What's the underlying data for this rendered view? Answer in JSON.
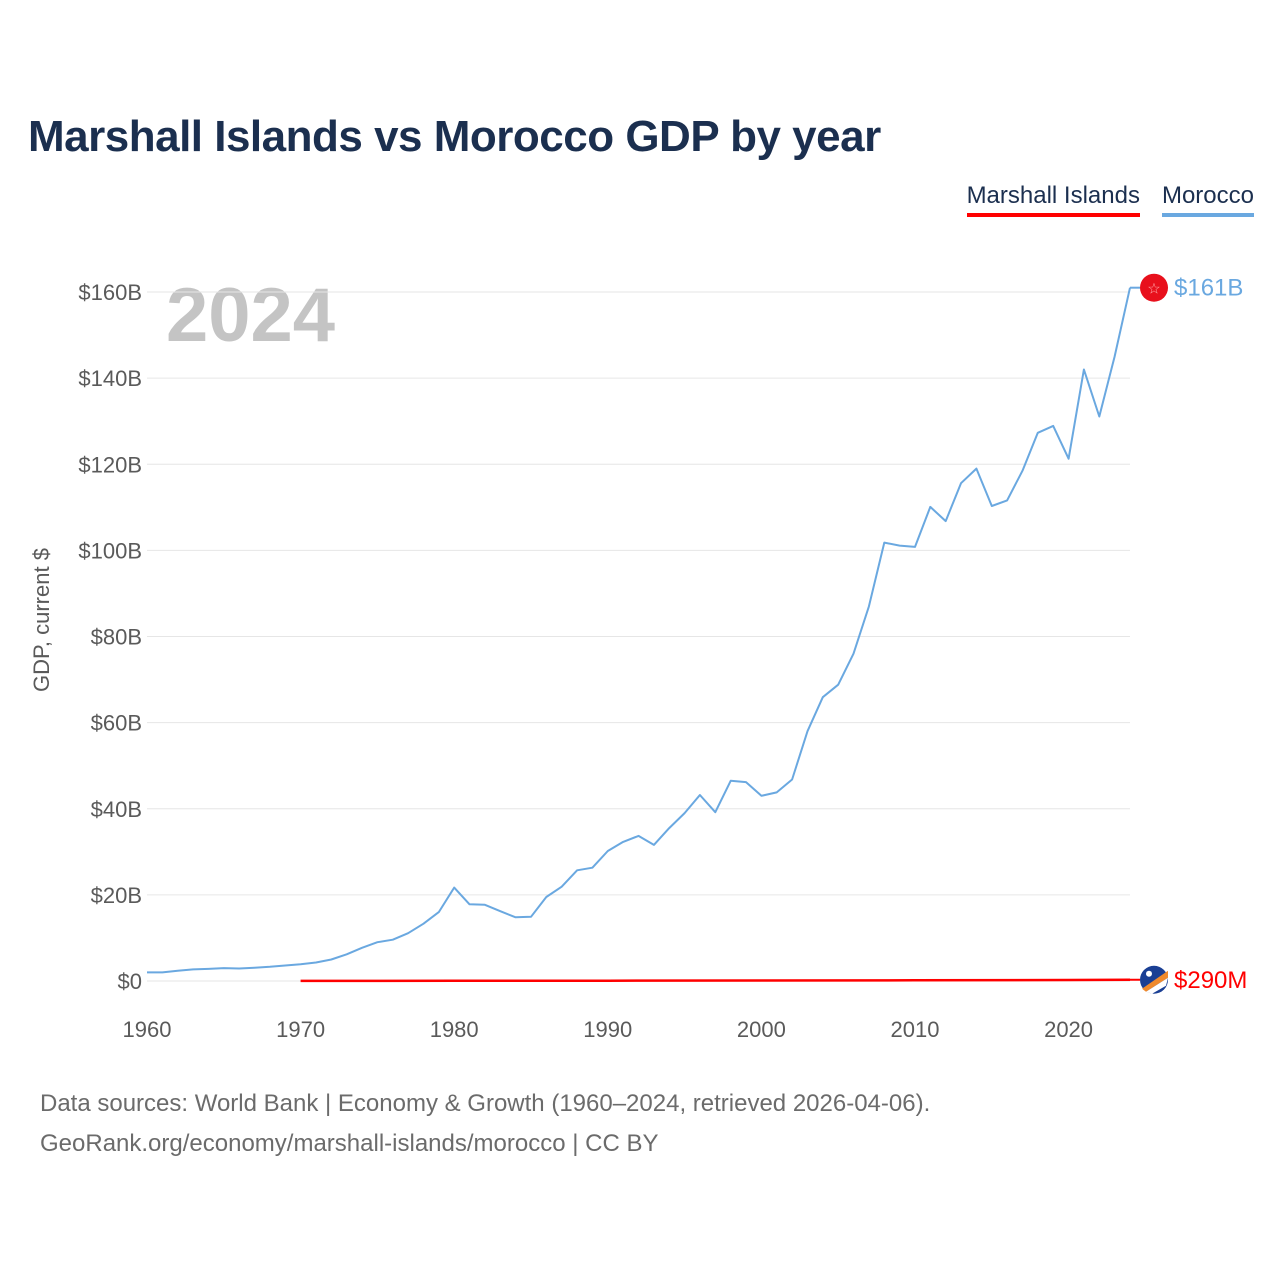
{
  "title": "Marshall Islands vs Morocco GDP by year",
  "legend": [
    {
      "label": "Marshall Islands",
      "color": "#ff0000"
    },
    {
      "label": "Morocco",
      "color": "#6aa8e0"
    }
  ],
  "year_label": "2024",
  "source": {
    "line1": "Data sources: World Bank | Economy & Growth (1960–2024, retrieved 2026-04-06).",
    "line2": "GeoRank.org/economy/marshall-islands/morocco | CC BY"
  },
  "chart_data": {
    "type": "line",
    "title": "Marshall Islands vs Morocco GDP by year",
    "xlabel": "",
    "ylabel": "GDP, current $",
    "xlim": [
      1960,
      2024
    ],
    "ylim": [
      0,
      160
    ],
    "y_unit": "billions USD",
    "x_ticks": [
      1960,
      1970,
      1980,
      1990,
      2000,
      2010,
      2020
    ],
    "y_ticks": [
      {
        "value": 0,
        "label": "$0"
      },
      {
        "value": 20,
        "label": "$20B"
      },
      {
        "value": 40,
        "label": "$40B"
      },
      {
        "value": 60,
        "label": "$60B"
      },
      {
        "value": 80,
        "label": "$80B"
      },
      {
        "value": 100,
        "label": "$100B"
      },
      {
        "value": 120,
        "label": "$120B"
      },
      {
        "value": 140,
        "label": "$140B"
      },
      {
        "value": 160,
        "label": "$160B"
      }
    ],
    "grid": true,
    "legend_position": "top-right",
    "series": [
      {
        "name": "Morocco",
        "color": "#6aa8e0",
        "end_label": "$161B",
        "flag": "morocco-flag",
        "x": [
          1960,
          1961,
          1962,
          1963,
          1964,
          1965,
          1966,
          1967,
          1968,
          1969,
          1970,
          1971,
          1972,
          1973,
          1974,
          1975,
          1976,
          1977,
          1978,
          1979,
          1980,
          1981,
          1982,
          1983,
          1984,
          1985,
          1986,
          1987,
          1988,
          1989,
          1990,
          1991,
          1992,
          1993,
          1994,
          1995,
          1996,
          1997,
          1998,
          1999,
          2000,
          2001,
          2002,
          2003,
          2004,
          2005,
          2006,
          2007,
          2008,
          2009,
          2010,
          2011,
          2012,
          2013,
          2014,
          2015,
          2016,
          2017,
          2018,
          2019,
          2020,
          2021,
          2022,
          2023,
          2024
        ],
        "values": [
          2.0,
          2.0,
          2.4,
          2.7,
          2.8,
          3.0,
          2.9,
          3.1,
          3.3,
          3.6,
          3.9,
          4.3,
          5.0,
          6.2,
          7.7,
          9.0,
          9.6,
          11.1,
          13.3,
          16.0,
          21.7,
          17.8,
          17.7,
          16.2,
          14.8,
          14.9,
          19.5,
          21.9,
          25.7,
          26.3,
          30.2,
          32.3,
          33.7,
          31.6,
          35.5,
          39.0,
          43.2,
          39.2,
          46.5,
          46.2,
          43.0,
          43.8,
          46.8,
          58.0,
          65.9,
          68.8,
          76.0,
          87.0,
          101.8,
          101.1,
          100.8,
          110.1,
          106.8,
          115.6,
          119.0,
          110.3,
          111.6,
          118.5,
          127.3,
          128.9,
          121.3,
          142.0,
          131.1,
          145.0,
          161.0
        ]
      },
      {
        "name": "Marshall Islands",
        "color": "#ff0000",
        "end_label": "$290M",
        "flag": "marshall-islands-flag",
        "x": [
          1970,
          1980,
          1990,
          2000,
          2010,
          2020,
          2024
        ],
        "values": [
          0.03,
          0.04,
          0.07,
          0.11,
          0.16,
          0.24,
          0.29
        ]
      }
    ]
  }
}
